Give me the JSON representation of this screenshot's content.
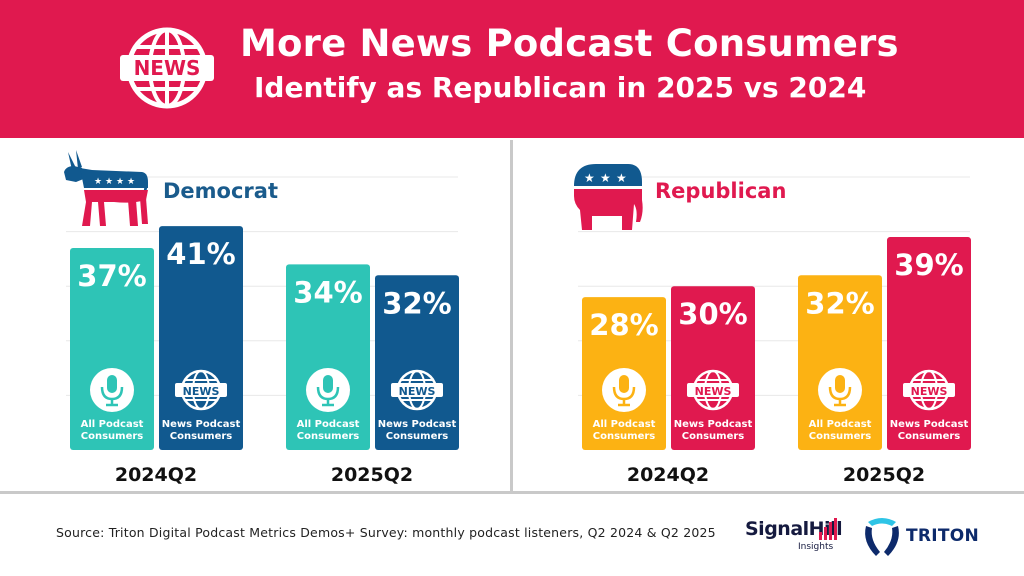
{
  "header": {
    "badge_text": "NEWS",
    "title_line1": "More News Podcast Consumers",
    "title_line2": "Identify as Republican in 2025 vs 2024"
  },
  "colors": {
    "header_bg": "#e0194f",
    "dem_all": "#2ec4b6",
    "dem_news": "#11598f",
    "rep_all": "#fcb213",
    "rep_news": "#e0194f",
    "dem_label": "#1a5b8c",
    "rep_label": "#e0194f"
  },
  "chart_data": [
    {
      "type": "bar",
      "title": "Democrat",
      "categories": [
        "2024Q2",
        "2025Q2"
      ],
      "series": [
        {
          "name": "All Podcast Consumers",
          "values": [
            37,
            34
          ],
          "icon": "microphone-icon"
        },
        {
          "name": "News Podcast Consumers",
          "values": [
            41,
            32
          ],
          "icon": "news-globe-icon",
          "icon_text": "NEWS"
        }
      ],
      "value_labels": [
        [
          "37%",
          "34%"
        ],
        [
          "41%",
          "32%"
        ]
      ],
      "series_labels": [
        [
          "All Podcast",
          "Consumers"
        ],
        [
          "News Podcast",
          "Consumers"
        ]
      ],
      "ylim": [
        0,
        50
      ],
      "grid": true
    },
    {
      "type": "bar",
      "title": "Republican",
      "categories": [
        "2024Q2",
        "2025Q2"
      ],
      "series": [
        {
          "name": "All Podcast Consumers",
          "values": [
            28,
            32
          ],
          "icon": "microphone-icon"
        },
        {
          "name": "News Podcast Consumers",
          "values": [
            30,
            39
          ],
          "icon": "news-globe-icon",
          "icon_text": "NEWS"
        }
      ],
      "value_labels": [
        [
          "28%",
          "32%"
        ],
        [
          "30%",
          "39%"
        ]
      ],
      "series_labels": [
        [
          "All Podcast",
          "Consumers"
        ],
        [
          "News Podcast",
          "Consumers"
        ]
      ],
      "ylim": [
        0,
        50
      ],
      "grid": true
    }
  ],
  "footer": {
    "source": "Source: Triton Digital Podcast Metrics Demos+ Survey: monthly podcast listeners, Q2 2024 & Q2 2025",
    "logo_signalhill": "SignalHill",
    "logo_signalhill_sub": "Insights",
    "logo_triton": "TRITON"
  }
}
